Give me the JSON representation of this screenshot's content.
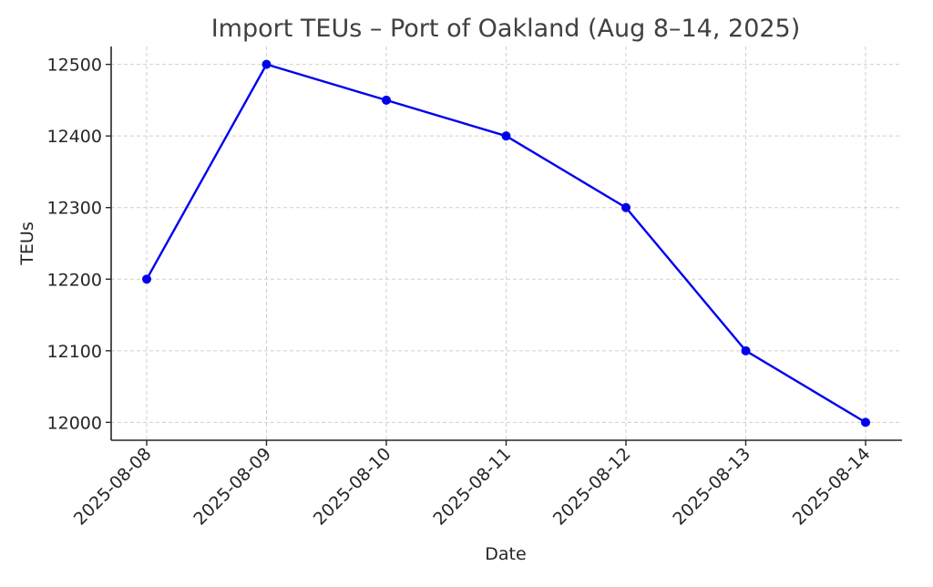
{
  "chart_data": {
    "type": "line",
    "title": "Import TEUs – Port of Oakland (Aug 8–14, 2025)",
    "xlabel": "Date",
    "ylabel": "TEUs",
    "categories": [
      "2025-08-08",
      "2025-08-09",
      "2025-08-10",
      "2025-08-11",
      "2025-08-12",
      "2025-08-13",
      "2025-08-14"
    ],
    "series": [
      {
        "values": [
          12200,
          12500,
          12450,
          12400,
          12300,
          12100,
          12000
        ],
        "color": "#0000ee",
        "marker": "circle"
      }
    ],
    "yticks": [
      12000,
      12100,
      12200,
      12300,
      12400,
      12500
    ],
    "ylim": [
      11975,
      12525
    ],
    "grid": true,
    "legend": "none"
  }
}
